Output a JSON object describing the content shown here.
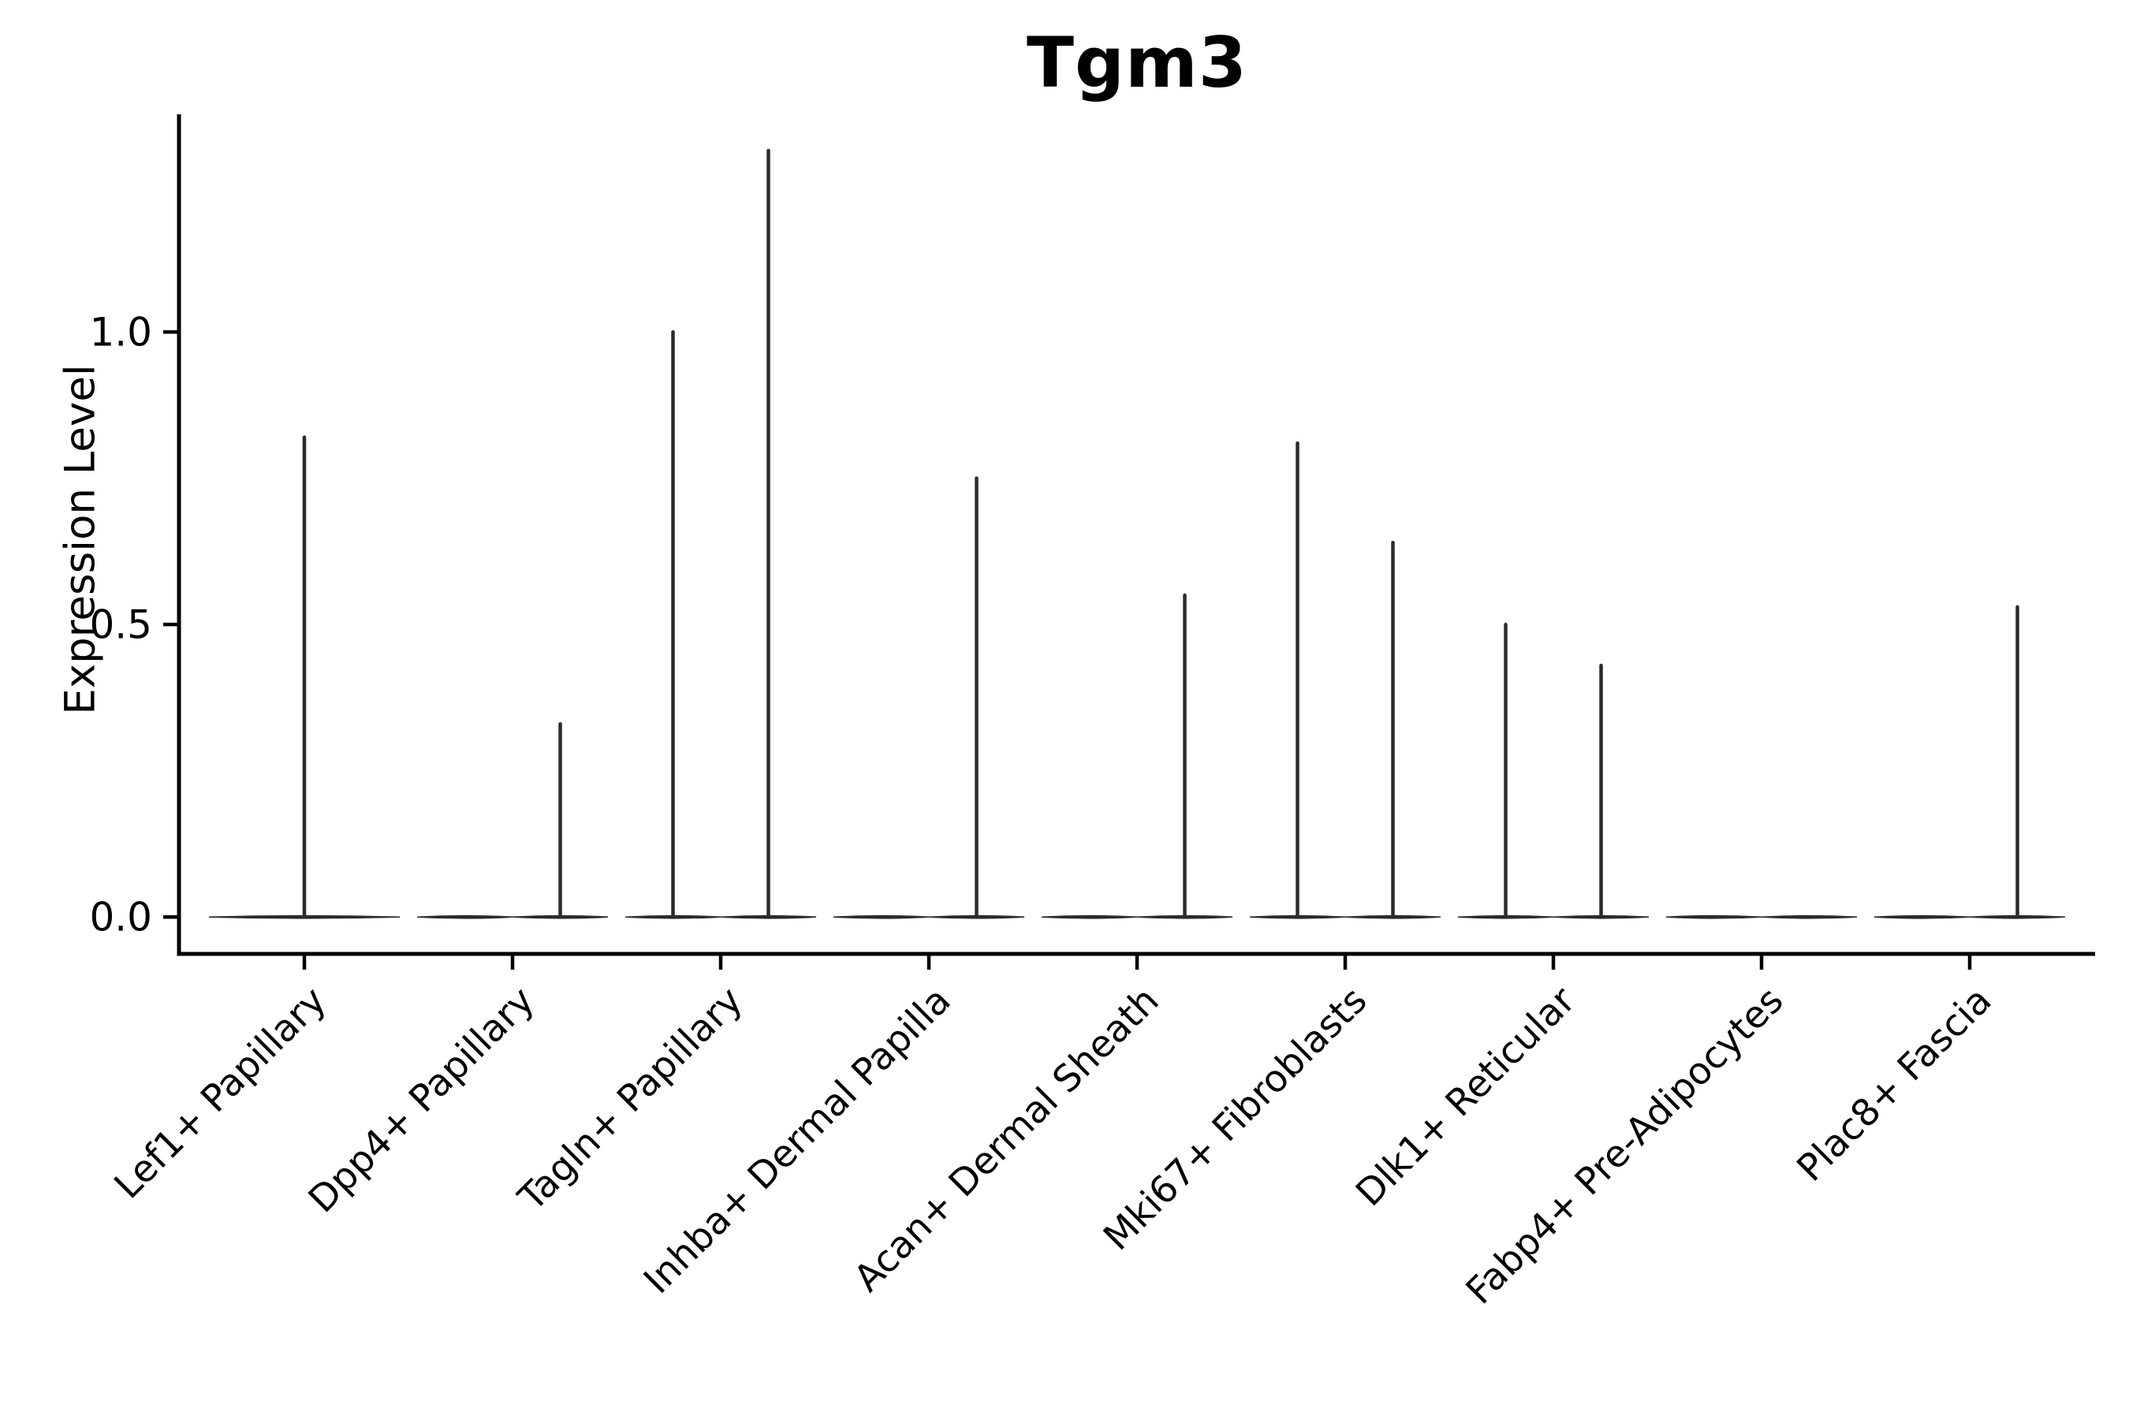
{
  "chart_data": {
    "type": "violin",
    "title": "Tgm3",
    "ylabel": "Expression Level",
    "xlabel": "",
    "ylim": [
      -0.063,
      1.372
    ],
    "grid": false,
    "yticks": [
      {
        "label": "0.0",
        "value": 0.0
      },
      {
        "label": "0.5",
        "value": 0.5
      },
      {
        "label": "1.0",
        "value": 1.0
      }
    ],
    "categories": [
      "Lef1+ Papillary",
      "Dpp4+ Papillary",
      "Tagln+ Papillary",
      "Inhba+ Dermal Papilla",
      "Acan+ Dermal Sheath",
      "Mki67+ Fibroblasts",
      "Dlk1+ Reticular",
      "Fabp4+ Pre-Adipocytes",
      "Plac8+ Fascia"
    ],
    "violins": [
      {
        "category": "Lef1+ Papillary",
        "groups": [
          {
            "position": "center",
            "max": 0.82
          }
        ]
      },
      {
        "category": "Dpp4+ Papillary",
        "groups": [
          {
            "position": "left",
            "max": 0
          },
          {
            "position": "right",
            "max": 0.33
          }
        ]
      },
      {
        "category": "Tagln+ Papillary",
        "groups": [
          {
            "position": "left",
            "max": 1.0
          },
          {
            "position": "right",
            "max": 1.31
          }
        ]
      },
      {
        "category": "Inhba+ Dermal Papilla",
        "groups": [
          {
            "position": "left",
            "max": 0
          },
          {
            "position": "right",
            "max": 0.75
          }
        ]
      },
      {
        "category": "Acan+ Dermal Sheath",
        "groups": [
          {
            "position": "left",
            "max": 0
          },
          {
            "position": "right",
            "max": 0.55
          }
        ]
      },
      {
        "category": "Mki67+ Fibroblasts",
        "groups": [
          {
            "position": "left",
            "max": 0.81
          },
          {
            "position": "right",
            "max": 0.64
          }
        ]
      },
      {
        "category": "Dlk1+ Reticular",
        "groups": [
          {
            "position": "left",
            "max": 0.5
          },
          {
            "position": "right",
            "max": 0.43
          }
        ]
      },
      {
        "category": "Fabp4+ Pre-Adipocytes",
        "groups": [
          {
            "position": "left",
            "max": 0
          },
          {
            "position": "right",
            "max": 0
          }
        ]
      },
      {
        "category": "Plac8+ Fascia",
        "groups": [
          {
            "position": "left",
            "max": 0
          },
          {
            "position": "right",
            "max": 0.53
          }
        ]
      }
    ],
    "colors": {
      "violin": "#2b2b2b",
      "axis": "#000000",
      "text": "#000000",
      "background": "#ffffff"
    }
  }
}
